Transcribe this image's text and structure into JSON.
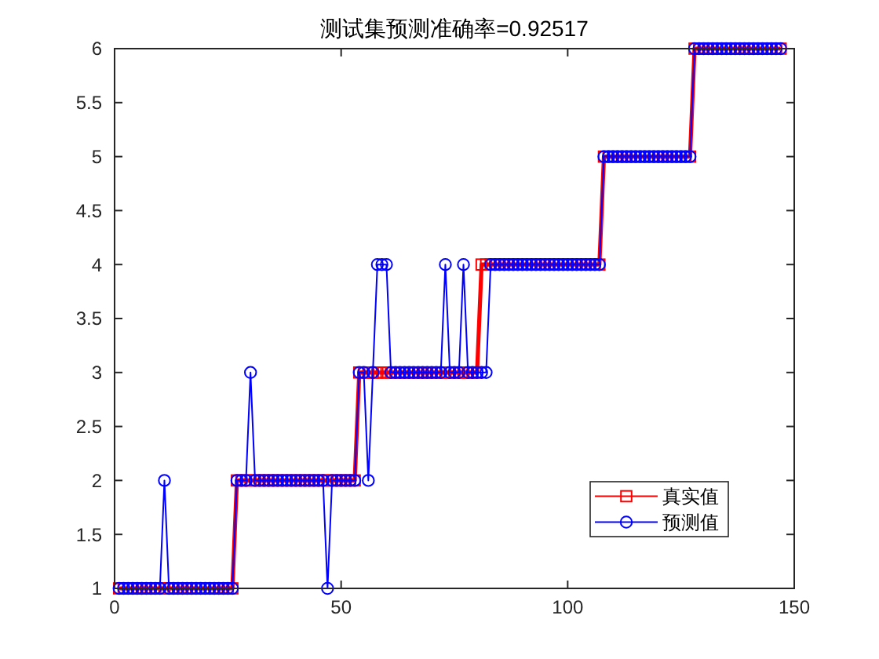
{
  "chart_data": {
    "type": "line",
    "title": "测试集预测准确率=0.92517",
    "x": [
      1,
      2,
      3,
      4,
      5,
      6,
      7,
      8,
      9,
      10,
      11,
      12,
      13,
      14,
      15,
      16,
      17,
      18,
      19,
      20,
      21,
      22,
      23,
      24,
      25,
      26,
      27,
      28,
      29,
      30,
      31,
      32,
      33,
      34,
      35,
      36,
      37,
      38,
      39,
      40,
      41,
      42,
      43,
      44,
      45,
      46,
      47,
      48,
      49,
      50,
      51,
      52,
      53,
      54,
      55,
      56,
      57,
      58,
      59,
      60,
      61,
      62,
      63,
      64,
      65,
      66,
      67,
      68,
      69,
      70,
      71,
      72,
      73,
      74,
      75,
      76,
      77,
      78,
      79,
      80,
      81,
      82,
      83,
      84,
      85,
      86,
      87,
      88,
      89,
      90,
      91,
      92,
      93,
      94,
      95,
      96,
      97,
      98,
      99,
      100,
      101,
      102,
      103,
      104,
      105,
      106,
      107,
      108,
      109,
      110,
      111,
      112,
      113,
      114,
      115,
      116,
      117,
      118,
      119,
      120,
      121,
      122,
      123,
      124,
      125,
      126,
      127,
      128,
      129,
      130,
      131,
      132,
      133,
      134,
      135,
      136,
      137,
      138,
      139,
      140,
      141,
      142,
      143,
      144,
      145,
      146,
      147
    ],
    "series": [
      {
        "name": "真实值",
        "color": "#ff0000",
        "marker": "square",
        "values": [
          1,
          1,
          1,
          1,
          1,
          1,
          1,
          1,
          1,
          1,
          1,
          1,
          1,
          1,
          1,
          1,
          1,
          1,
          1,
          1,
          1,
          1,
          1,
          1,
          1,
          1,
          2,
          2,
          2,
          2,
          2,
          2,
          2,
          2,
          2,
          2,
          2,
          2,
          2,
          2,
          2,
          2,
          2,
          2,
          2,
          2,
          2,
          2,
          2,
          2,
          2,
          2,
          2,
          3,
          3,
          3,
          3,
          3,
          3,
          3,
          3,
          3,
          3,
          3,
          3,
          3,
          3,
          3,
          3,
          3,
          3,
          3,
          3,
          3,
          3,
          3,
          3,
          3,
          3,
          3,
          4,
          4,
          4,
          4,
          4,
          4,
          4,
          4,
          4,
          4,
          4,
          4,
          4,
          4,
          4,
          4,
          4,
          4,
          4,
          4,
          4,
          4,
          4,
          4,
          4,
          4,
          4,
          5,
          5,
          5,
          5,
          5,
          5,
          5,
          5,
          5,
          5,
          5,
          5,
          5,
          5,
          5,
          5,
          5,
          5,
          5,
          5,
          6,
          6,
          6,
          6,
          6,
          6,
          6,
          6,
          6,
          6,
          6,
          6,
          6,
          6,
          6,
          6,
          6,
          6,
          6,
          6
        ]
      },
      {
        "name": "预测值",
        "color": "#0000ff",
        "marker": "circle",
        "values": [
          1,
          1,
          1,
          1,
          1,
          1,
          1,
          1,
          1,
          1,
          2,
          1,
          1,
          1,
          1,
          1,
          1,
          1,
          1,
          1,
          1,
          1,
          1,
          1,
          1,
          1,
          2,
          2,
          2,
          3,
          2,
          2,
          2,
          2,
          2,
          2,
          2,
          2,
          2,
          2,
          2,
          2,
          2,
          2,
          2,
          2,
          1,
          2,
          2,
          2,
          2,
          2,
          2,
          3,
          3,
          2,
          3,
          4,
          4,
          4,
          3,
          3,
          3,
          3,
          3,
          3,
          3,
          3,
          3,
          3,
          3,
          3,
          4,
          3,
          3,
          3,
          4,
          3,
          3,
          3,
          3,
          3,
          4,
          4,
          4,
          4,
          4,
          4,
          4,
          4,
          4,
          4,
          4,
          4,
          4,
          4,
          4,
          4,
          4,
          4,
          4,
          4,
          4,
          4,
          4,
          4,
          4,
          5,
          5,
          5,
          5,
          5,
          5,
          5,
          5,
          5,
          5,
          5,
          5,
          5,
          5,
          5,
          5,
          5,
          5,
          5,
          5,
          6,
          6,
          6,
          6,
          6,
          6,
          6,
          6,
          6,
          6,
          6,
          6,
          6,
          6,
          6,
          6,
          6,
          6,
          6,
          6
        ]
      }
    ],
    "xlim": [
      0,
      150
    ],
    "xticks": [
      0,
      50,
      100,
      150
    ],
    "ylim": [
      1,
      6
    ],
    "yticks": [
      1,
      1.5,
      2,
      2.5,
      3,
      3.5,
      4,
      4.5,
      5,
      5.5,
      6
    ],
    "legend": "bottom right"
  }
}
